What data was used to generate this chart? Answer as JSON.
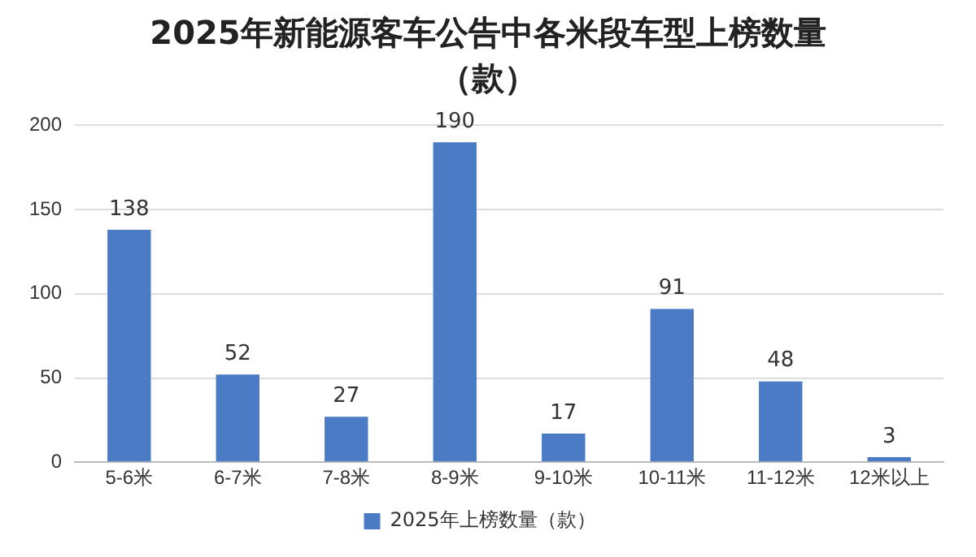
{
  "chart_data": {
    "type": "bar",
    "title": "2025年新能源客车公告中各米段车型上榜数量（款）",
    "categories": [
      "5-6米",
      "6-7米",
      "7-8米",
      "8-9米",
      "9-10米",
      "10-11米",
      "11-12米",
      "12米以上"
    ],
    "series": [
      {
        "name": "2025年上榜数量（款）",
        "color": "#4a7bc4",
        "values": [
          138,
          52,
          27,
          190,
          17,
          91,
          48,
          3
        ]
      }
    ],
    "ylim": [
      0,
      200
    ],
    "yticks": [
      0,
      50,
      100,
      150,
      200
    ],
    "grid": "y",
    "legend": "bottom",
    "data_labels": true
  }
}
